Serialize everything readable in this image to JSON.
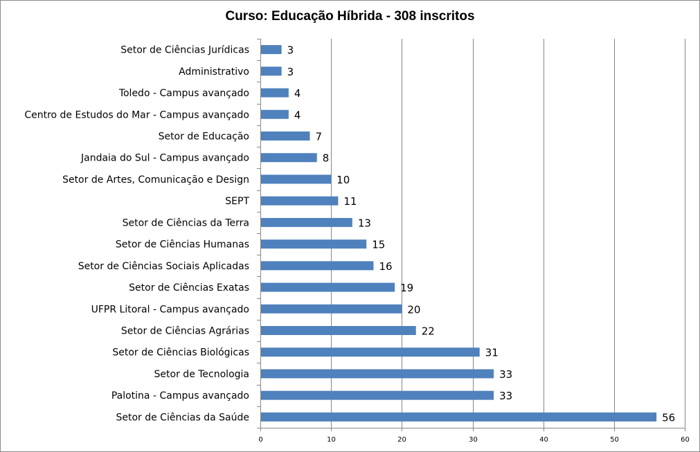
{
  "chart_data": {
    "type": "bar",
    "orientation": "horizontal",
    "title": "Curso: Educação Híbrida - 308 inscritos",
    "xlabel": "",
    "ylabel": "",
    "xlim": [
      0,
      60
    ],
    "xticks": [
      0,
      10,
      20,
      30,
      40,
      50,
      60
    ],
    "grid": true,
    "legend": "none",
    "bar_color": "#4F81BD",
    "categories": [
      "Setor de Ciências Jurídicas",
      "Administrativo",
      "Toledo - Campus avançado",
      "Centro de Estudos do Mar - Campus avançado",
      "Setor de Educação",
      "Jandaia do Sul - Campus avançado",
      "Setor de Artes, Comunicação e Design",
      "SEPT",
      "Setor de Ciências da Terra",
      "Setor de Ciências Humanas",
      "Setor de Ciências Sociais Aplicadas",
      "Setor de Ciências Exatas",
      "UFPR Litoral - Campus avançado",
      "Setor de Ciências Agrárias",
      "Setor de Ciências Biológicas",
      "Setor de Tecnologia",
      "Palotina - Campus avançado",
      "Setor de Ciências da Saúde"
    ],
    "values": [
      3,
      3,
      4,
      4,
      7,
      8,
      10,
      11,
      13,
      15,
      16,
      19,
      20,
      22,
      31,
      33,
      33,
      56
    ]
  }
}
